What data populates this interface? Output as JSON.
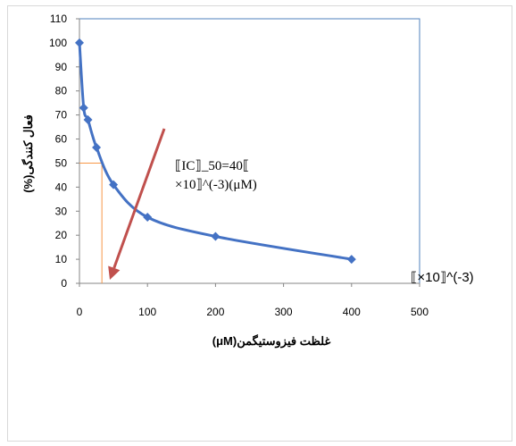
{
  "chart_data": {
    "type": "scatter",
    "xlabel": "غلظت فیزوستیگمن(μM)",
    "ylabel": "فعال کنندگی(%)",
    "xlim": [
      0,
      500
    ],
    "ylim": [
      0,
      110
    ],
    "x_ticks": [
      "0",
      "100",
      "200",
      "300",
      "400",
      "500"
    ],
    "y_ticks": [
      "0",
      "10",
      "20",
      "30",
      "40",
      "50",
      "60",
      "70",
      "80",
      "90",
      "100",
      "110"
    ],
    "series": [
      {
        "x": [
          0,
          6.25,
          12.5,
          25,
          50,
          100,
          200,
          400
        ],
        "y": [
          100,
          73,
          68,
          56.5,
          41,
          27.5,
          19.5,
          10
        ]
      }
    ],
    "annotations": {
      "ic50_line1": "⟦IC⟧_50=40⟦",
      "ic50_line2": "×10⟧^(-3)(μM)",
      "axis_unit": "⟦×10⟧^(-3)"
    },
    "reference_point": {
      "x": 33,
      "y": 50
    },
    "grid": false,
    "colors": {
      "series": "#4472C4",
      "arrow": "#C0504D",
      "reference": "#F79646",
      "plot_border": "#4F81BD"
    }
  }
}
